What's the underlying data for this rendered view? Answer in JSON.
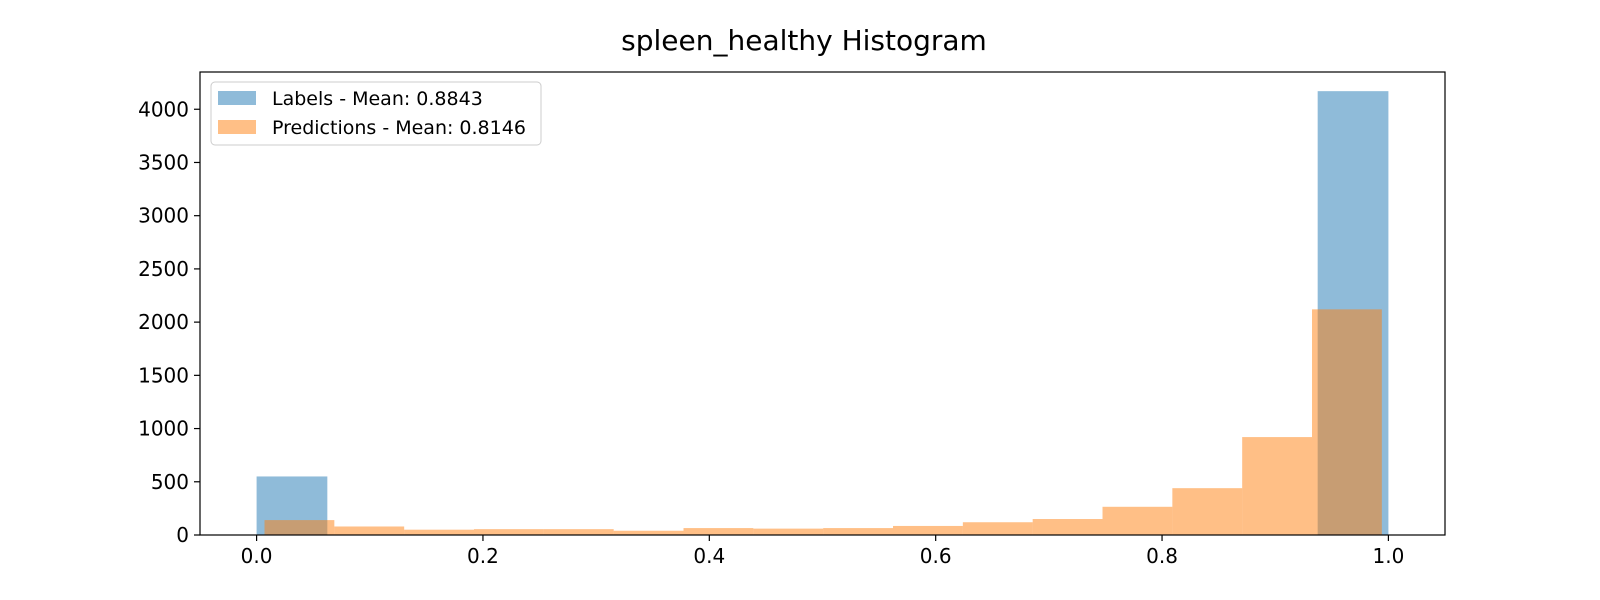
{
  "chart_data": {
    "type": "bar",
    "title": "spleen_healthy Histogram",
    "xlabel": "",
    "ylabel": "",
    "xlim": [
      -0.05,
      1.05
    ],
    "ylim": [
      0,
      4350
    ],
    "x_ticks": [
      "0.0",
      "0.2",
      "0.4",
      "0.6",
      "0.8",
      "1.0"
    ],
    "y_ticks": [
      "0",
      "500",
      "1000",
      "1500",
      "2000",
      "2500",
      "3000",
      "3500",
      "4000"
    ],
    "grid": false,
    "legend_position": "top-left",
    "series": [
      {
        "name": "Labels - Mean: 0.8843",
        "color": "#1f77b4",
        "opacity": 0.5,
        "bins": [
          {
            "x0": 0.0,
            "x1": 0.0625,
            "count": 550
          },
          {
            "x0": 0.9375,
            "x1": 1.0,
            "count": 4170
          }
        ]
      },
      {
        "name": "Predictions - Mean: 0.8146",
        "color": "#ff7f0e",
        "opacity": 0.5,
        "bins": [
          {
            "x0": 0.007,
            "x1": 0.0687,
            "count": 140
          },
          {
            "x0": 0.0687,
            "x1": 0.1304,
            "count": 80
          },
          {
            "x0": 0.1304,
            "x1": 0.1921,
            "count": 50
          },
          {
            "x0": 0.1921,
            "x1": 0.2538,
            "count": 55
          },
          {
            "x0": 0.2538,
            "x1": 0.3155,
            "count": 55
          },
          {
            "x0": 0.3155,
            "x1": 0.3772,
            "count": 40
          },
          {
            "x0": 0.3772,
            "x1": 0.4389,
            "count": 65
          },
          {
            "x0": 0.4389,
            "x1": 0.5006,
            "count": 60
          },
          {
            "x0": 0.5006,
            "x1": 0.5623,
            "count": 65
          },
          {
            "x0": 0.5623,
            "x1": 0.624,
            "count": 85
          },
          {
            "x0": 0.624,
            "x1": 0.6857,
            "count": 120
          },
          {
            "x0": 0.6857,
            "x1": 0.7474,
            "count": 150
          },
          {
            "x0": 0.7474,
            "x1": 0.8091,
            "count": 265
          },
          {
            "x0": 0.8091,
            "x1": 0.8708,
            "count": 440
          },
          {
            "x0": 0.8708,
            "x1": 0.9325,
            "count": 920
          },
          {
            "x0": 0.9325,
            "x1": 0.9942,
            "count": 2120
          }
        ]
      }
    ]
  }
}
